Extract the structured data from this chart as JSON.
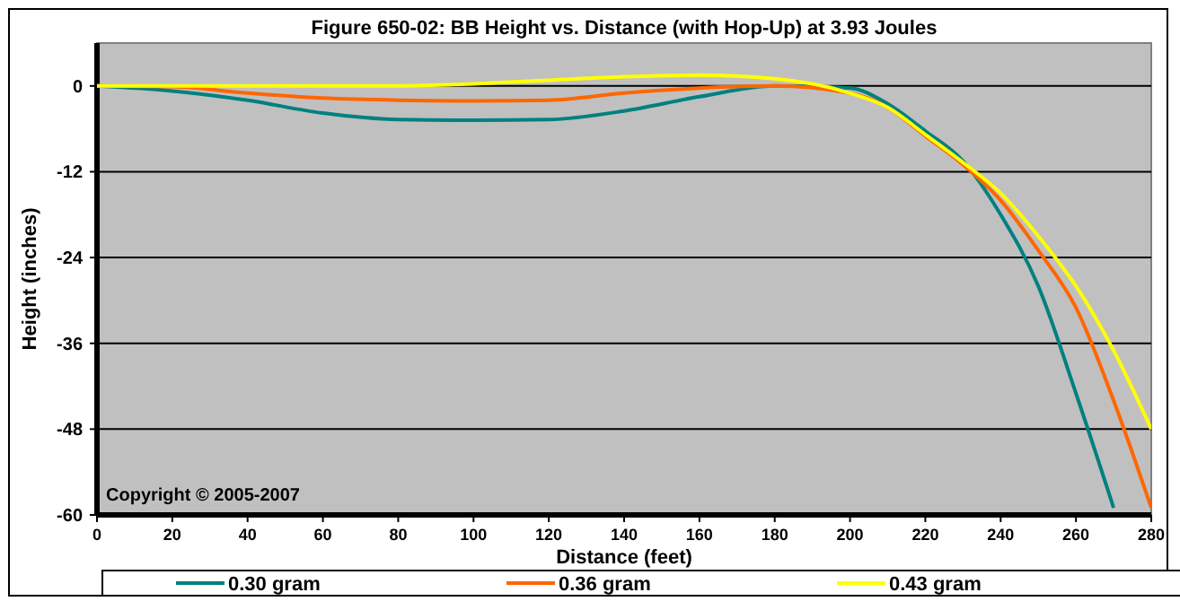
{
  "chart_data": {
    "type": "line",
    "title": "Figure 650-02:  BB Height vs. Distance (with Hop-Up) at 3.93 Joules",
    "xlabel": "Distance (feet)",
    "ylabel": "Height (inches)",
    "annotations": [
      "Copyright © 2005-2007"
    ],
    "x": [
      0,
      20,
      40,
      60,
      80,
      100,
      120,
      140,
      160,
      180,
      200,
      210,
      220,
      230,
      240,
      250,
      260,
      270,
      280
    ],
    "xlim": [
      0,
      280
    ],
    "xticks": [
      0,
      20,
      40,
      60,
      80,
      100,
      120,
      140,
      160,
      180,
      200,
      220,
      240,
      260,
      280
    ],
    "ylim": [
      -60,
      6
    ],
    "yticks": [
      0,
      -12,
      -24,
      -36,
      -48,
      -60
    ],
    "grid": "y",
    "legend": "bottom",
    "marker": "none",
    "line_style": "solid",
    "series": [
      {
        "name": "0.30 gram",
        "color": "#008080",
        "values": [
          0,
          -0.7,
          -2,
          -3.8,
          -4.7,
          -4.8,
          -4.7,
          -3.5,
          -1.5,
          0,
          -0.3,
          -2.5,
          -6.3,
          -10.5,
          -18,
          -28,
          -43,
          -59,
          null
        ]
      },
      {
        "name": "0.36 gram",
        "color": "#ff6600",
        "values": [
          0,
          -0.1,
          -1,
          -1.7,
          -2,
          -2.1,
          -2,
          -1,
          -0.3,
          0,
          -1,
          -3,
          -7,
          -11,
          -16,
          -23,
          -31,
          -44,
          -59
        ]
      },
      {
        "name": "0.43 gram",
        "color": "#ffff00",
        "values": [
          0,
          0,
          0,
          0,
          0,
          0.3,
          0.8,
          1.3,
          1.5,
          1,
          -1,
          -3,
          -6.8,
          -10.7,
          -15,
          -21,
          -28,
          -37,
          -48
        ]
      }
    ]
  }
}
